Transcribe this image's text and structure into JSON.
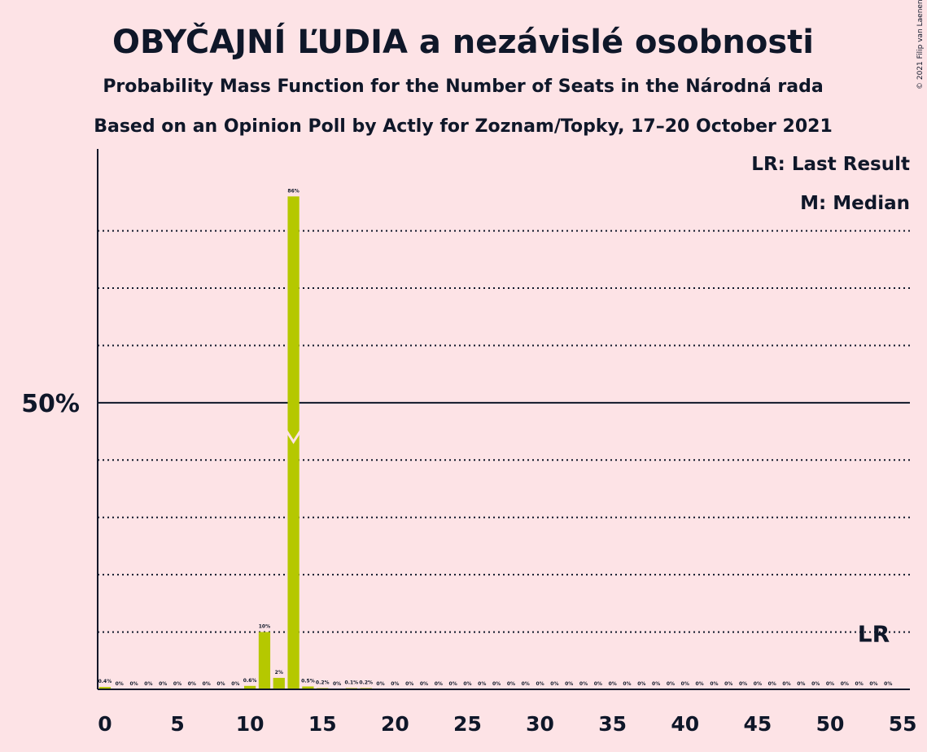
{
  "title": "OBYČAJNÍ ĽUDIA a nezávislé osobnosti",
  "subtitle": "Probability Mass Function for the Number of Seats in the Národná rada",
  "source_line": "Based on an Opinion Poll by Actly for Zoznam/Topky, 17–20 October 2021",
  "copyright": "© 2021 Filip van Laenen",
  "legend": {
    "last_result": "LR: Last Result",
    "median": "M: Median"
  },
  "colors": {
    "background": "#fde3e6",
    "bar": "#b5c800",
    "text": "#0f1729"
  },
  "chart_data": {
    "type": "bar",
    "x": [
      0,
      1,
      2,
      3,
      4,
      5,
      6,
      7,
      8,
      9,
      10,
      11,
      12,
      13,
      14,
      15,
      16,
      17,
      18,
      19,
      20,
      21,
      22,
      23,
      24,
      25,
      26,
      27,
      28,
      29,
      30,
      31,
      32,
      33,
      34,
      35,
      36,
      37,
      38,
      39,
      40,
      41,
      42,
      43,
      44,
      45,
      46,
      47,
      48,
      49,
      50,
      51,
      52,
      53,
      54,
      55
    ],
    "values": [
      0.4,
      0,
      0,
      0,
      0,
      0,
      0,
      0,
      0,
      0,
      0.6,
      10,
      2,
      86,
      0.5,
      0.2,
      0,
      0.1,
      0.2,
      0,
      0,
      0,
      0,
      0,
      0,
      0,
      0,
      0,
      0,
      0,
      0,
      0,
      0,
      0,
      0,
      0,
      0,
      0,
      0,
      0,
      0,
      0,
      0,
      0,
      0,
      0,
      0,
      0,
      0,
      0,
      0,
      0,
      0,
      0,
      0,
      0
    ],
    "labels": [
      "0.4%",
      "0%",
      "0%",
      "0%",
      "0%",
      "0%",
      "0%",
      "0%",
      "0%",
      "0%",
      "0.6%",
      "10%",
      "2%",
      "86%",
      "0.5%",
      "0.2%",
      "0%",
      "0.1%",
      "0.2%",
      "0%",
      "0%",
      "0%",
      "0%",
      "0%",
      "0%",
      "0%",
      "0%",
      "0%",
      "0%",
      "0%",
      "0%",
      "0%",
      "0%",
      "0%",
      "0%",
      "0%",
      "0%",
      "0%",
      "0%",
      "0%",
      "0%",
      "0%",
      "0%",
      "0%",
      "0%",
      "0%",
      "0%",
      "0%",
      "0%",
      "0%",
      "0%",
      "0%",
      "0%",
      "0%",
      "0%",
      ""
    ],
    "x_ticks": [
      "0",
      "5",
      "10",
      "15",
      "20",
      "25",
      "30",
      "35",
      "40",
      "45",
      "50",
      "55"
    ],
    "x_tick_values": [
      0,
      5,
      10,
      15,
      20,
      25,
      30,
      35,
      40,
      45,
      50,
      55
    ],
    "y_tick_label": "50%",
    "y_tick_value": 50,
    "ylim": [
      0,
      94
    ],
    "xlim": [
      -0.5,
      55.5
    ],
    "grid_values": [
      10,
      20,
      30,
      40,
      60,
      70,
      80
    ],
    "median": 13,
    "last_result": 53,
    "last_result_label": "LR",
    "grid": true
  }
}
